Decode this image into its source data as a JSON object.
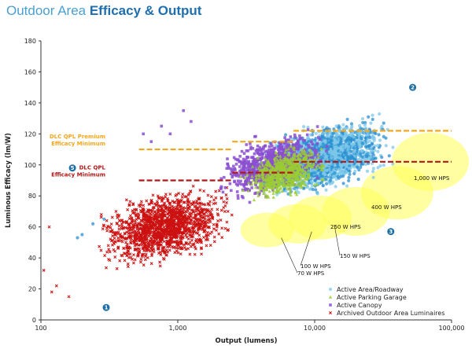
{
  "title": {
    "light": "Outdoor Area ",
    "bold": "Efficacy & Output"
  },
  "colors": {
    "roadway": "#7ec8ea",
    "roadway_dark": "#2a8fd0",
    "parking": "#9acd32",
    "canopy": "#8a4fd0",
    "archived": "#cc1111",
    "hps": "#ffff55",
    "premium": "#f4a71d",
    "qpl": "#b01818",
    "badge": "#1c6ea4"
  },
  "chart_data": {
    "type": "scatter",
    "xlabel": "Output (lumens)",
    "ylabel": "Luminous Efficacy (lm/W)",
    "x_scale": "log",
    "xlim": [
      100,
      100000
    ],
    "ylim": [
      0,
      180
    ],
    "x_ticks": [
      100,
      1000,
      10000,
      100000
    ],
    "x_tick_labels": [
      "100",
      "1,000",
      "10,000",
      "100,000"
    ],
    "y_ticks": [
      0,
      20,
      40,
      60,
      80,
      100,
      120,
      140,
      160,
      180
    ],
    "grid": false,
    "legend": "bottom-right",
    "series": [
      {
        "name": "Active Area/Roadway",
        "marker": "circle",
        "color": "#7ec8ea",
        "cloud": {
          "x_range": [
            500,
            60000
          ],
          "y_range": [
            35,
            160
          ],
          "peak_x": 12000,
          "peak_y": 105
        },
        "points": [
          [
            290,
            65
          ],
          [
            240,
            62
          ],
          [
            200,
            55
          ],
          [
            185,
            53
          ]
        ]
      },
      {
        "name": "Active Parking Garage",
        "marker": "triangle",
        "color": "#9acd32",
        "cloud": {
          "x_range": [
            1500,
            30000
          ],
          "y_range": [
            40,
            130
          ],
          "peak_x": 6000,
          "peak_y": 95
        }
      },
      {
        "name": "Active Canopy",
        "marker": "square",
        "color": "#8a4fd0",
        "cloud": {
          "x_range": [
            600,
            25000
          ],
          "y_range": [
            30,
            155
          ],
          "peak_x": 5000,
          "peak_y": 100
        },
        "points": [
          [
            560,
            120
          ],
          [
            640,
            115
          ],
          [
            760,
            125
          ],
          [
            880,
            120
          ],
          [
            1100,
            135
          ],
          [
            1250,
            128
          ]
        ]
      },
      {
        "name": "Archived Outdoor Area Luminaires",
        "marker": "x",
        "color": "#cc1111",
        "cloud": {
          "x_range": [
            100,
            40000
          ],
          "y_range": [
            5,
            165
          ],
          "peak_x": 800,
          "peak_y": 60
        },
        "points": [
          [
            115,
            60
          ],
          [
            105,
            32
          ],
          [
            120,
            18
          ],
          [
            130,
            22
          ],
          [
            160,
            15
          ]
        ]
      }
    ],
    "hps_bands": [
      {
        "label": "70 W HPS",
        "x": 4500,
        "y": 58
      },
      {
        "label": "100 W HPS",
        "x": 7500,
        "y": 62
      },
      {
        "label": "150 W HPS",
        "x": 11000,
        "y": 66
      },
      {
        "label": "250 W HPS",
        "x": 20000,
        "y": 70
      },
      {
        "label": "400 W HPS",
        "x": 40000,
        "y": 82
      },
      {
        "label": "1,000 W HPS",
        "x": 70000,
        "y": 102
      }
    ],
    "reference_lines": [
      {
        "label": [
          "DLC QPL Premium",
          "Efficacy Minimum"
        ],
        "color": "#f4a71d",
        "segments": [
          {
            "x0": 520,
            "x1": 2500,
            "y": 110
          },
          {
            "x0": 2500,
            "x1": 7000,
            "y": 115
          },
          {
            "x0": 7000,
            "x1": 100000,
            "y": 122
          }
        ]
      },
      {
        "label": [
          "DLC QPL",
          "Efficacy Minimum"
        ],
        "color": "#b01818",
        "segments": [
          {
            "x0": 520,
            "x1": 2500,
            "y": 90
          },
          {
            "x0": 2500,
            "x1": 7000,
            "y": 95
          },
          {
            "x0": 7000,
            "x1": 100000,
            "y": 102
          }
        ]
      }
    ],
    "callouts": [
      {
        "label": "1",
        "x": 300,
        "y": 8
      },
      {
        "label": "2",
        "x": 52000,
        "y": 150
      },
      {
        "label": "3",
        "x": 36000,
        "y": 57
      },
      {
        "label": "5",
        "x": 170,
        "y": 98
      }
    ]
  }
}
